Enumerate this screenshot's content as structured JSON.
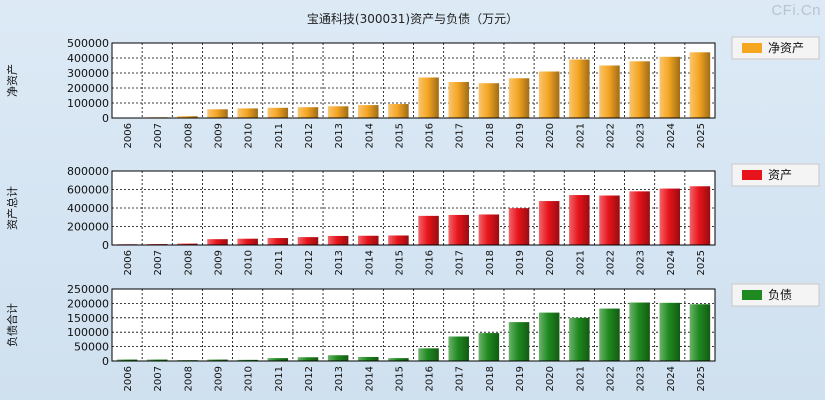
{
  "title": "宝通科技(300031)资产与负债（万元）",
  "brand": "CFi.Cn",
  "chart_data": [
    {
      "type": "bar",
      "ylabel": "净资产",
      "legend": "净资产",
      "color": "#f5a623",
      "ylim": [
        0,
        500000
      ],
      "yticks": [
        0,
        100000,
        200000,
        300000,
        400000,
        500000
      ],
      "categories": [
        "2006",
        "2007",
        "2008",
        "2009",
        "2010",
        "2011",
        "2012",
        "2013",
        "2014",
        "2015",
        "2016",
        "2017",
        "2018",
        "2019",
        "2020",
        "2021",
        "2022",
        "2023",
        "2024",
        "2025"
      ],
      "values": [
        3000,
        5000,
        12000,
        58000,
        64000,
        68000,
        72000,
        78000,
        86000,
        93000,
        270000,
        240000,
        232000,
        265000,
        310000,
        390000,
        350000,
        378000,
        408000,
        438000
      ]
    },
    {
      "type": "bar",
      "ylabel": "资产总计",
      "legend": "资产",
      "color": "#e8141b",
      "ylim": [
        0,
        800000
      ],
      "yticks": [
        0,
        200000,
        400000,
        600000,
        800000
      ],
      "categories": [
        "2006",
        "2007",
        "2008",
        "2009",
        "2010",
        "2011",
        "2012",
        "2013",
        "2014",
        "2015",
        "2016",
        "2017",
        "2018",
        "2019",
        "2020",
        "2021",
        "2022",
        "2023",
        "2024",
        "2025"
      ],
      "values": [
        8000,
        10000,
        15000,
        63000,
        68000,
        75000,
        85000,
        98000,
        100000,
        103000,
        315000,
        325000,
        330000,
        398000,
        475000,
        540000,
        535000,
        580000,
        610000,
        635000
      ]
    },
    {
      "type": "bar",
      "ylabel": "负债合计",
      "legend": "负债",
      "color": "#1f8a1f",
      "ylim": [
        0,
        250000
      ],
      "yticks": [
        0,
        50000,
        100000,
        150000,
        200000,
        250000
      ],
      "categories": [
        "2006",
        "2007",
        "2008",
        "2009",
        "2010",
        "2011",
        "2012",
        "2013",
        "2014",
        "2015",
        "2016",
        "2017",
        "2018",
        "2019",
        "2020",
        "2021",
        "2022",
        "2023",
        "2024",
        "2025"
      ],
      "values": [
        5000,
        5000,
        3000,
        5000,
        4000,
        10000,
        13000,
        20000,
        14000,
        10000,
        44000,
        85000,
        97000,
        135000,
        168000,
        150000,
        182000,
        203000,
        202000,
        197000
      ]
    }
  ]
}
